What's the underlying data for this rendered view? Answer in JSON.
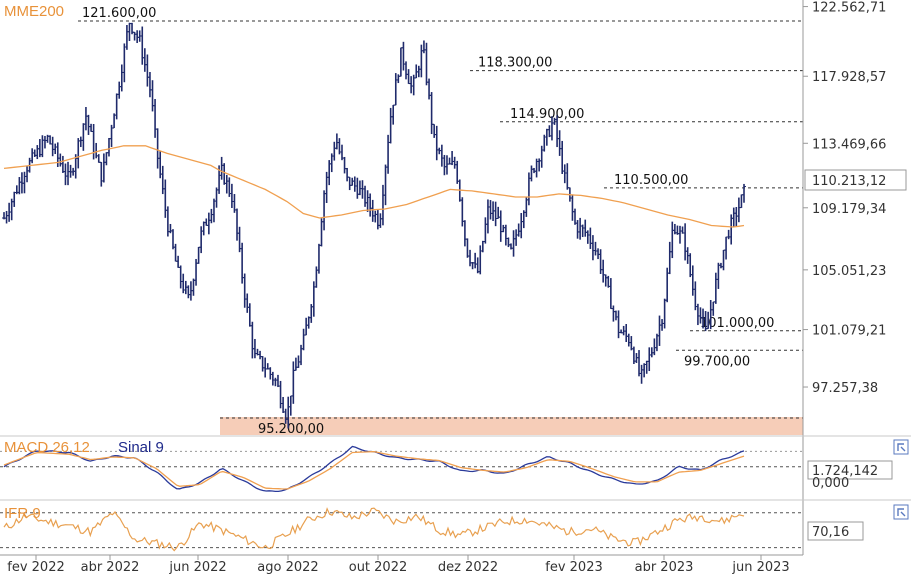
{
  "colors": {
    "price_bars": "#1f2a6b",
    "ema": "#f0a050",
    "macd": "#2a3a9a",
    "signal": "#f0a050",
    "rsi": "#e8a050",
    "support_zone": "#f6cdb8",
    "title_orange": "#e8923a",
    "title_blue": "#1f2a8b",
    "badge_border": "#999999"
  },
  "chart_data": [
    {
      "type": "ohlc",
      "title": "MME200",
      "x_tick_labels": [
        "fev 2022",
        "abr 2022",
        "jun 2022",
        "ago 2022",
        "out 2022",
        "dez 2022",
        "fev 2023",
        "abr 2023",
        "jun 2023"
      ],
      "y_tick_labels": [
        "122.562,71",
        "117.928,57",
        "113.469,66",
        "109.179,34",
        "105.051,23",
        "101.079,21",
        "97.257,38"
      ],
      "y_ticks": [
        122562.71,
        117928.57,
        113469.66,
        109179.34,
        105051.23,
        101079.21,
        97257.38
      ],
      "ylim": [
        94000,
        123000
      ],
      "last_value_label": "110.213,12",
      "last_value": 110213.12,
      "levels": [
        {
          "label": "121.600,00",
          "value": 121600
        },
        {
          "label": "118.300,00",
          "value": 118300
        },
        {
          "label": "114.900,00",
          "value": 114900
        },
        {
          "label": "110.500,00",
          "value": 110500
        },
        {
          "label": "101.000,00",
          "value": 101000
        },
        {
          "label": "99.700,00",
          "value": 99700
        },
        {
          "label": "95.200,00",
          "value": 95200
        }
      ],
      "close_path": [
        [
          0,
          108.5
        ],
        [
          4,
          111.8
        ],
        [
          8,
          113.8
        ],
        [
          12,
          111.0
        ],
        [
          15,
          115.4
        ],
        [
          17,
          112.4
        ],
        [
          18,
          111.2
        ],
        [
          21,
          117.2
        ],
        [
          23,
          121.6
        ],
        [
          25,
          120.2
        ],
        [
          27,
          116.8
        ],
        [
          28,
          113.1
        ],
        [
          30,
          108.2
        ],
        [
          32,
          104.8
        ],
        [
          34,
          103.0
        ],
        [
          36,
          107.2
        ],
        [
          38,
          109.0
        ],
        [
          40,
          111.6
        ],
        [
          42,
          109.8
        ],
        [
          44,
          104.0
        ],
        [
          46,
          99.3
        ],
        [
          48,
          98.6
        ],
        [
          50,
          97.6
        ],
        [
          52,
          95.2
        ],
        [
          53,
          97.7
        ],
        [
          55,
          100.2
        ],
        [
          57,
          104.0
        ],
        [
          59,
          110.8
        ],
        [
          61,
          113.8
        ],
        [
          63,
          111.0
        ],
        [
          65,
          110.5
        ],
        [
          67,
          109.4
        ],
        [
          69,
          108.2
        ],
        [
          71,
          115.2
        ],
        [
          73,
          119.5
        ],
        [
          75,
          117.0
        ],
        [
          77,
          119.8
        ],
        [
          79,
          113.7
        ],
        [
          81,
          111.8
        ],
        [
          83,
          112.1
        ],
        [
          85,
          106.4
        ],
        [
          87,
          104.8
        ],
        [
          89,
          109.1
        ],
        [
          91,
          108.3
        ],
        [
          93,
          106.0
        ],
        [
          95,
          108.5
        ],
        [
          97,
          111.6
        ],
        [
          99,
          113.3
        ],
        [
          101,
          115.0
        ],
        [
          103,
          111.2
        ],
        [
          105,
          108.0
        ],
        [
          107,
          107.5
        ],
        [
          109,
          106.2
        ],
        [
          111,
          103.6
        ],
        [
          113,
          101.0
        ],
        [
          115,
          100.4
        ],
        [
          117,
          97.8
        ],
        [
          119,
          99.6
        ],
        [
          121,
          102.0
        ],
        [
          123,
          108.1
        ],
        [
          125,
          107.0
        ],
        [
          127,
          103.0
        ],
        [
          129,
          100.8
        ],
        [
          131,
          104.5
        ],
        [
          133,
          107.5
        ],
        [
          135,
          109.2
        ],
        [
          136,
          110.2
        ]
      ],
      "ema200_path": [
        [
          0,
          111.8
        ],
        [
          5,
          112.0
        ],
        [
          10,
          112.2
        ],
        [
          14,
          112.6
        ],
        [
          18,
          113.0
        ],
        [
          22,
          113.3
        ],
        [
          26,
          113.3
        ],
        [
          30,
          112.8
        ],
        [
          34,
          112.4
        ],
        [
          38,
          112.0
        ],
        [
          40,
          111.6
        ],
        [
          44,
          111.0
        ],
        [
          48,
          110.4
        ],
        [
          52,
          109.6
        ],
        [
          55,
          108.8
        ],
        [
          58,
          108.5
        ],
        [
          62,
          108.7
        ],
        [
          66,
          109.0
        ],
        [
          70,
          109.1
        ],
        [
          74,
          109.4
        ],
        [
          78,
          109.9
        ],
        [
          82,
          110.4
        ],
        [
          86,
          110.3
        ],
        [
          90,
          110.1
        ],
        [
          94,
          109.9
        ],
        [
          98,
          109.9
        ],
        [
          102,
          110.1
        ],
        [
          106,
          110.0
        ],
        [
          110,
          109.8
        ],
        [
          114,
          109.5
        ],
        [
          118,
          109.1
        ],
        [
          122,
          108.7
        ],
        [
          126,
          108.4
        ],
        [
          130,
          108.0
        ],
        [
          134,
          107.9
        ],
        [
          136,
          108.0
        ]
      ]
    },
    {
      "type": "line",
      "title": "MACD 26,12",
      "series": [
        {
          "name": "MACD 26,12",
          "values_path": [
            [
              0,
              0.0
            ],
            [
              6,
              1.8
            ],
            [
              12,
              1.6
            ],
            [
              16,
              0.6
            ],
            [
              20,
              1.2
            ],
            [
              24,
              1.0
            ],
            [
              28,
              -0.6
            ],
            [
              32,
              -2.6
            ],
            [
              36,
              -1.8
            ],
            [
              40,
              -0.2
            ],
            [
              44,
              -1.6
            ],
            [
              48,
              -2.8
            ],
            [
              52,
              -2.6
            ],
            [
              56,
              -1.2
            ],
            [
              60,
              0.4
            ],
            [
              64,
              2.2
            ],
            [
              68,
              1.6
            ],
            [
              72,
              1.0
            ],
            [
              76,
              0.8
            ],
            [
              80,
              0.6
            ],
            [
              84,
              -0.5
            ],
            [
              88,
              -0.4
            ],
            [
              92,
              -0.8
            ],
            [
              96,
              0.2
            ],
            [
              100,
              1.1
            ],
            [
              104,
              0.4
            ],
            [
              108,
              -0.6
            ],
            [
              112,
              -1.4
            ],
            [
              116,
              -2.0
            ],
            [
              120,
              -1.6
            ],
            [
              124,
              0.0
            ],
            [
              128,
              -0.4
            ],
            [
              132,
              0.8
            ],
            [
              136,
              1.72
            ]
          ]
        },
        {
          "name": "Sinal 9",
          "values_path": [
            [
              0,
              0.2
            ],
            [
              6,
              1.6
            ],
            [
              12,
              1.4
            ],
            [
              16,
              0.8
            ],
            [
              20,
              1.1
            ],
            [
              24,
              1.0
            ],
            [
              28,
              -0.2
            ],
            [
              32,
              -2.2
            ],
            [
              36,
              -2.0
            ],
            [
              40,
              -0.5
            ],
            [
              44,
              -1.2
            ],
            [
              48,
              -2.4
            ],
            [
              52,
              -2.5
            ],
            [
              56,
              -1.6
            ],
            [
              60,
              -0.2
            ],
            [
              64,
              1.6
            ],
            [
              68,
              1.7
            ],
            [
              72,
              1.2
            ],
            [
              76,
              0.9
            ],
            [
              80,
              0.7
            ],
            [
              84,
              -0.1
            ],
            [
              88,
              -0.4
            ],
            [
              92,
              -0.6
            ],
            [
              96,
              -0.1
            ],
            [
              100,
              0.8
            ],
            [
              104,
              0.6
            ],
            [
              108,
              -0.2
            ],
            [
              112,
              -1.1
            ],
            [
              116,
              -1.7
            ],
            [
              120,
              -1.7
            ],
            [
              124,
              -0.6
            ],
            [
              128,
              -0.4
            ],
            [
              132,
              0.4
            ],
            [
              136,
              1.2
            ]
          ]
        }
      ],
      "ylim": [
        -3.5,
        3.0
      ],
      "y_tick_labels": [
        "1.724,142",
        "0,000"
      ],
      "last_value_label": "1.724,142"
    },
    {
      "type": "line",
      "title": "IFR 9",
      "series": [
        {
          "name": "IFR 9",
          "values_path": [
            [
              0,
              52
            ],
            [
              4,
              66
            ],
            [
              8,
              60
            ],
            [
              12,
              55
            ],
            [
              16,
              48
            ],
            [
              20,
              70
            ],
            [
              24,
              40
            ],
            [
              28,
              35
            ],
            [
              32,
              30
            ],
            [
              36,
              58
            ],
            [
              40,
              50
            ],
            [
              44,
              40
            ],
            [
              48,
              30
            ],
            [
              52,
              45
            ],
            [
              56,
              62
            ],
            [
              60,
              72
            ],
            [
              64,
              64
            ],
            [
              68,
              72
            ],
            [
              72,
              60
            ],
            [
              76,
              66
            ],
            [
              80,
              50
            ],
            [
              84,
              44
            ],
            [
              88,
              52
            ],
            [
              92,
              60
            ],
            [
              96,
              62
            ],
            [
              100,
              55
            ],
            [
              104,
              48
            ],
            [
              108,
              52
            ],
            [
              112,
              40
            ],
            [
              116,
              35
            ],
            [
              120,
              48
            ],
            [
              124,
              62
            ],
            [
              128,
              66
            ],
            [
              132,
              60
            ],
            [
              136,
              70.16
            ]
          ]
        }
      ],
      "ylim": [
        25,
        80
      ],
      "last_value_label": "70,16"
    }
  ]
}
